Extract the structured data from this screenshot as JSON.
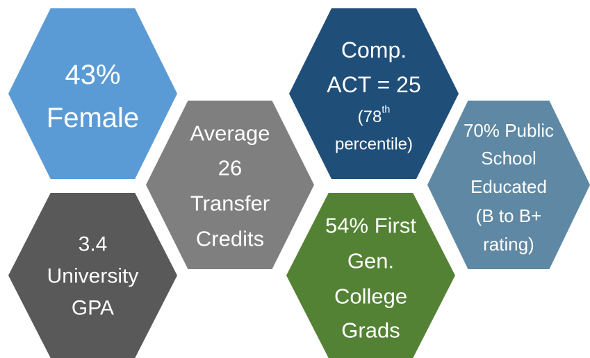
{
  "hexagons": [
    {
      "lines": [
        "43%",
        "Female"
      ]
    },
    {
      "lines": [
        "3.4",
        "University",
        "GPA"
      ]
    },
    {
      "lines": [
        "Average",
        "26",
        "Transfer",
        "Credits"
      ]
    },
    {
      "lines": [
        "Comp.",
        "ACT = 25",
        {
          "text": "(78",
          "sup": "th"
        },
        "percentile)"
      ]
    },
    {
      "lines": [
        "54% First",
        "Gen.",
        "College",
        "Grads"
      ]
    },
    {
      "lines": [
        "70% Public",
        "School",
        "Educated",
        "(B to B+",
        "rating)"
      ]
    }
  ]
}
